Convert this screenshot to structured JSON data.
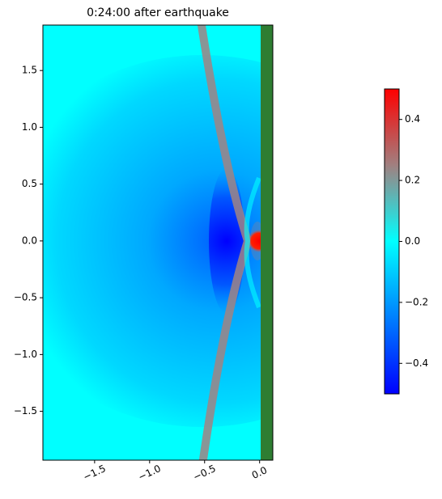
{
  "chart_data": {
    "type": "heatmap",
    "title": "0:24:00 after earthquake",
    "xlim": [
      -1.97,
      0.12
    ],
    "ylim": [
      -1.93,
      1.9
    ],
    "xticks": [
      {
        "value": -1.5,
        "label": "−1.5"
      },
      {
        "value": -1.0,
        "label": "−1.0"
      },
      {
        "value": -0.5,
        "label": "−0.5"
      },
      {
        "value": 0.0,
        "label": "0.0"
      }
    ],
    "yticks": [
      {
        "value": -1.5,
        "label": "−1.5"
      },
      {
        "value": -1.0,
        "label": "−1.0"
      },
      {
        "value": -0.5,
        "label": "−0.5"
      },
      {
        "value": 0.0,
        "label": "0.0"
      },
      {
        "value": 0.5,
        "label": "0.5"
      },
      {
        "value": 1.0,
        "label": "1.0"
      },
      {
        "value": 1.5,
        "label": "1.5"
      }
    ],
    "clim": [
      -0.5,
      0.5
    ],
    "cticks": [
      {
        "value": -0.4,
        "label": "−0.4"
      },
      {
        "value": -0.2,
        "label": "−0.2"
      },
      {
        "value": 0.0,
        "label": "0.0"
      },
      {
        "value": 0.2,
        "label": "0.2"
      },
      {
        "value": 0.4,
        "label": "0.4"
      }
    ],
    "colormap": [
      {
        "value": -0.5,
        "color": "#0000ff"
      },
      {
        "value": 0.0,
        "color": "#00ffff"
      },
      {
        "value": 0.25,
        "color": "#a08080"
      },
      {
        "value": 0.5,
        "color": "#ff0000"
      }
    ]
  }
}
